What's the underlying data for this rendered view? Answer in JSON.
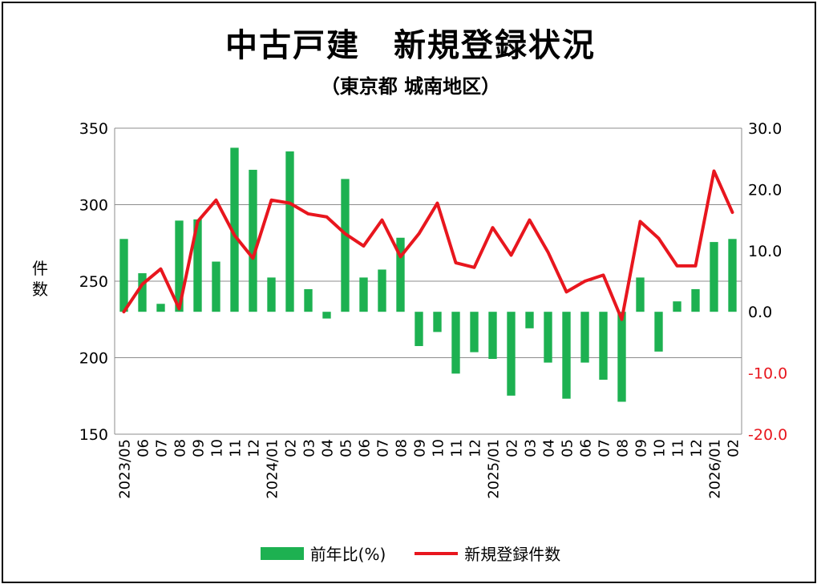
{
  "chart_data": {
    "type": "bar+line",
    "title": "中古戸建　新規登録状況",
    "subtitle": "（東京都 城南地区）",
    "ylabel": "件数",
    "y_left": {
      "min": 150,
      "max": 350,
      "ticks": [
        "150",
        "200",
        "250",
        "300",
        "350"
      ]
    },
    "y_right": {
      "min": -20,
      "max": 30,
      "ticks": [
        "-20.0",
        "-10.0",
        "0.0",
        "10.0",
        "20.0",
        "30.0"
      ]
    },
    "grid": "horizontal",
    "legend_position": "bottom",
    "x_labels": [
      "2023/05",
      "06",
      "07",
      "08",
      "09",
      "10",
      "11",
      "12",
      "2024/01",
      "02",
      "03",
      "04",
      "05",
      "06",
      "07",
      "08",
      "09",
      "10",
      "11",
      "12",
      "2025/01",
      "02",
      "03",
      "04",
      "05",
      "06",
      "07",
      "08",
      "09",
      "10",
      "11",
      "12",
      "2026/01",
      "02"
    ],
    "series": [
      {
        "name": "前年比(%)",
        "type": "bar",
        "axis": "right",
        "color": "#1db151",
        "values": [
          11.9,
          6.3,
          1.3,
          14.9,
          15.1,
          8.2,
          26.8,
          23.2,
          5.6,
          26.2,
          3.7,
          -1.1,
          21.7,
          5.6,
          6.9,
          12.1,
          -5.6,
          -3.3,
          -10.1,
          -6.6,
          -7.7,
          -13.7,
          -2.7,
          -8.3,
          -14.2,
          -8.3,
          -11.1,
          -14.7,
          5.6,
          -6.5,
          1.7,
          3.7,
          11.4,
          11.9
        ]
      },
      {
        "name": "新規登録件数",
        "type": "line",
        "axis": "left",
        "color": "#e8161e",
        "values": [
          230,
          248,
          258,
          232,
          289,
          303,
          280,
          265,
          303,
          301,
          294,
          292,
          281,
          273,
          290,
          266,
          281,
          301,
          262,
          259,
          285,
          267,
          290,
          269,
          243,
          250,
          254,
          225,
          289,
          278,
          260,
          260,
          322,
          295
        ]
      }
    ]
  }
}
